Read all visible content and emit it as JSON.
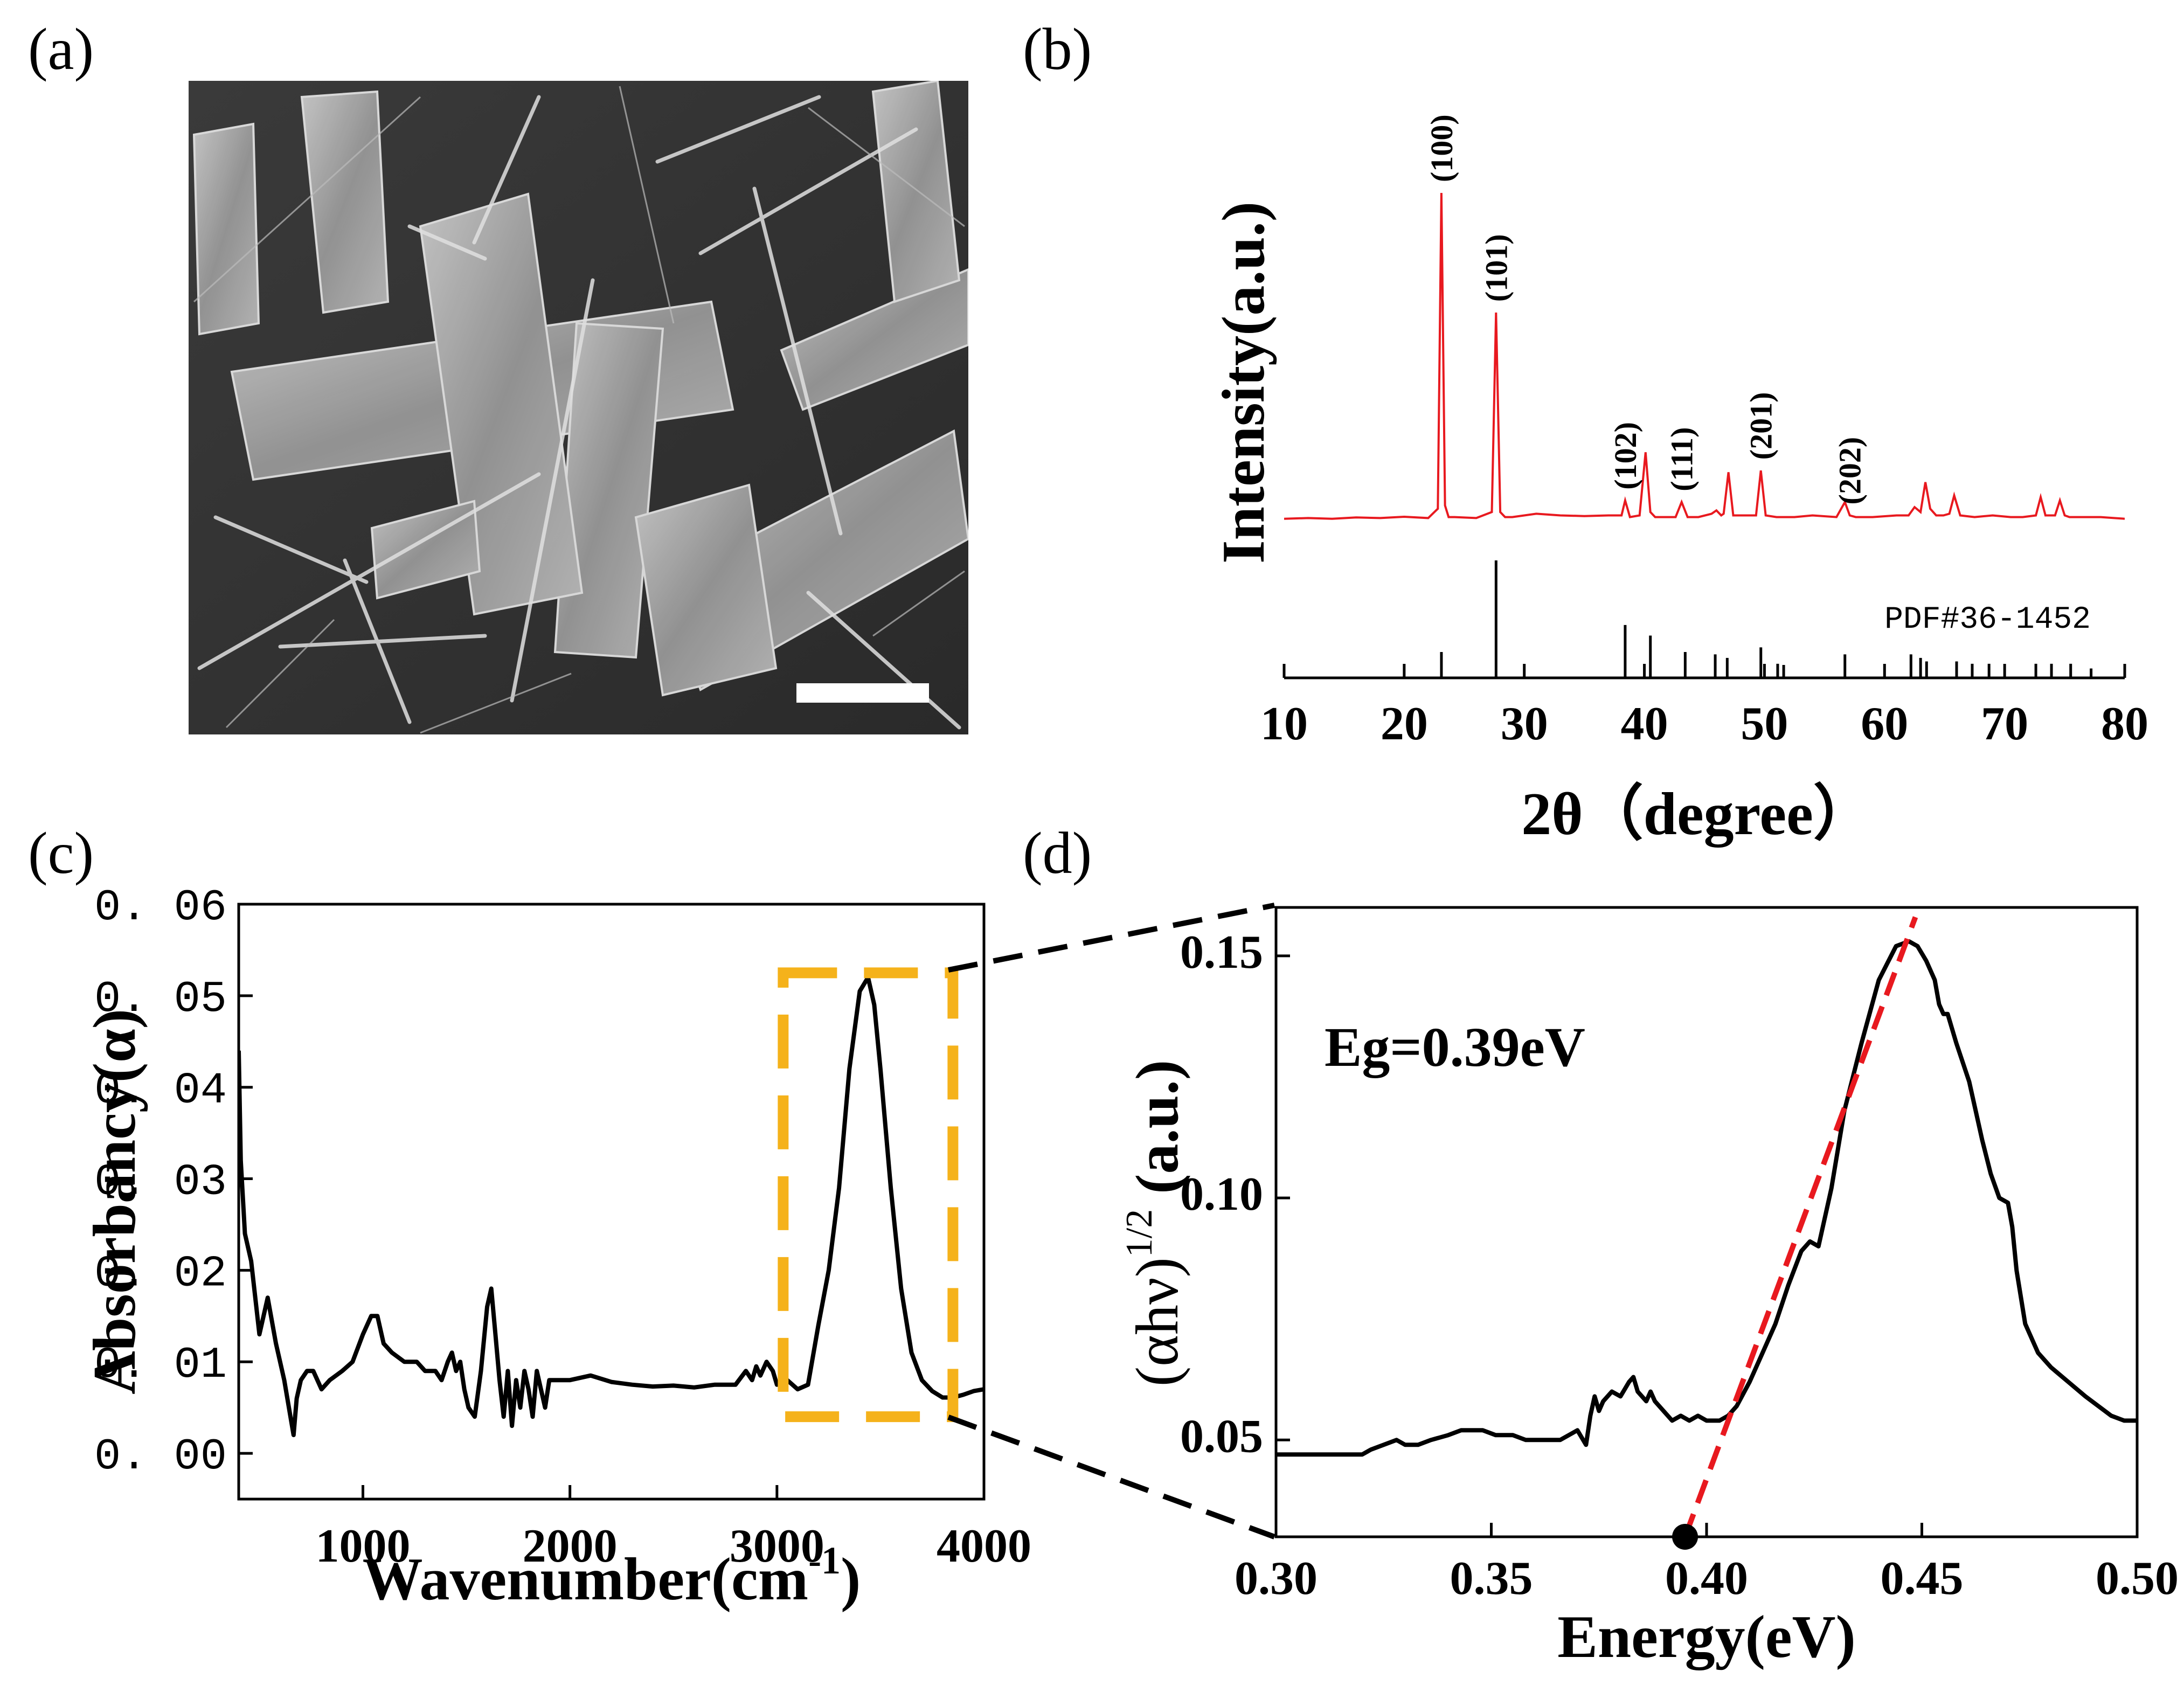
{
  "panels": [
    {
      "id": "a",
      "label": "(a)"
    },
    {
      "id": "b",
      "label": "(b)"
    },
    {
      "id": "c",
      "label": "(c)"
    },
    {
      "id": "d",
      "label": "(d)"
    }
  ],
  "colors": {
    "xrd_line": "#e8191f",
    "reference": "#000000",
    "ftir_line": "#000000",
    "zoom_box": "#f5b21b",
    "fit_line": "#e8191f"
  },
  "chart_data": [
    {
      "panel": "b",
      "type": "line",
      "title": "",
      "xlabel": "2θ（degree）",
      "ylabel": "Intensity(a.u.)",
      "xlim": [
        10,
        80
      ],
      "xticks": [
        "10",
        "20",
        "30",
        "40",
        "50",
        "60",
        "70",
        "80"
      ],
      "y_ticks_shown": false,
      "grid": false,
      "legend": "none",
      "series": [
        {
          "x": [
            10,
            12,
            14,
            16,
            18,
            20,
            22,
            22.8,
            23.1,
            23.4,
            23.7,
            24.2,
            26,
            27.3,
            27.65,
            28.0,
            28.4,
            29,
            31,
            33,
            35,
            37,
            38.1,
            38.4,
            38.8,
            39.6,
            40.1,
            40.5,
            40.9,
            41.6,
            42.6,
            43.1,
            43.6,
            44.5,
            45.6,
            46.0,
            46.4,
            46.6,
            47.0,
            47.4,
            48.2,
            49.3,
            49.7,
            50.1,
            51.0,
            52.5,
            54.0,
            56.0,
            56.7,
            57.1,
            57.6,
            59,
            61,
            62.0,
            62.5,
            63.0,
            63.4,
            63.8,
            64.3,
            64.9,
            65.4,
            65.8,
            66.3,
            67.5,
            69,
            70.5,
            71.5,
            72.6,
            73.0,
            73.4,
            74.2,
            74.6,
            75.0,
            75.4,
            76.2,
            78,
            80
          ],
          "y": [
            0.02,
            0.022,
            0.02,
            0.024,
            0.022,
            0.026,
            0.022,
            0.05,
            1.0,
            0.06,
            0.025,
            0.025,
            0.022,
            0.04,
            0.64,
            0.04,
            0.025,
            0.025,
            0.035,
            0.03,
            0.028,
            0.03,
            0.03,
            0.075,
            0.025,
            0.03,
            0.22,
            0.04,
            0.025,
            0.025,
            0.025,
            0.07,
            0.025,
            0.025,
            0.035,
            0.045,
            0.03,
            0.035,
            0.16,
            0.03,
            0.03,
            0.03,
            0.165,
            0.03,
            0.025,
            0.025,
            0.03,
            0.025,
            0.07,
            0.03,
            0.025,
            0.025,
            0.03,
            0.03,
            0.055,
            0.04,
            0.13,
            0.05,
            0.03,
            0.03,
            0.035,
            0.09,
            0.03,
            0.025,
            0.03,
            0.025,
            0.025,
            0.03,
            0.085,
            0.03,
            0.03,
            0.075,
            0.03,
            0.025,
            0.025,
            0.025,
            0.02
          ]
        }
      ],
      "peak_labels": [
        {
          "x": 23.1,
          "text": "(100)"
        },
        {
          "x": 27.65,
          "text": "(101)"
        },
        {
          "x": 38.4,
          "text": "(102)"
        },
        {
          "x": 43.1,
          "text": "(111)"
        },
        {
          "x": 49.7,
          "text": "(201)"
        },
        {
          "x": 57.1,
          "text": "(202)"
        }
      ],
      "reference": {
        "label": "PDF#36-1452",
        "x": [
          23.1,
          27.65,
          38.4,
          40.5,
          43.4,
          45.9,
          46.9,
          49.7,
          51.1,
          51.6,
          56.7,
          62.2,
          63.0,
          63.5,
          66.0,
          67.3,
          68.7,
          72.6,
          73.9,
          75.5,
          77.2
        ],
        "h": [
          0.22,
          1.0,
          0.45,
          0.36,
          0.22,
          0.2,
          0.17,
          0.26,
          0.12,
          0.11,
          0.2,
          0.2,
          0.17,
          0.14,
          0.14,
          0.12,
          0.12,
          0.12,
          0.12,
          0.12,
          0.08
        ]
      }
    },
    {
      "panel": "c",
      "type": "line",
      "title": "",
      "xlabel": "Wavenumber(cm",
      "xlabel_sup": "-1",
      "xlabel_close": ")",
      "ylabel": "Absorbancy(α)",
      "xlim": [
        400,
        4000
      ],
      "ylim": [
        -0.005,
        0.06
      ],
      "xticks": [
        "1000",
        "2000",
        "3000",
        "4000"
      ],
      "yticks": [
        "0. 00",
        "0. 01",
        "0. 02",
        "0. 03",
        "0. 04",
        "0. 05",
        "0. 06"
      ],
      "grid": false,
      "legend": "none",
      "series": [
        {
          "x": [
            400,
            410,
            430,
            460,
            500,
            540,
            580,
            620,
            650,
            665,
            680,
            700,
            730,
            760,
            800,
            840,
            900,
            950,
            1000,
            1040,
            1070,
            1100,
            1140,
            1200,
            1260,
            1300,
            1350,
            1380,
            1410,
            1430,
            1450,
            1470,
            1490,
            1510,
            1540,
            1570,
            1600,
            1620,
            1640,
            1660,
            1680,
            1700,
            1720,
            1740,
            1760,
            1780,
            1800,
            1820,
            1840,
            1860,
            1880,
            1900,
            1950,
            2000,
            2100,
            2200,
            2300,
            2400,
            2500,
            2600,
            2700,
            2800,
            2850,
            2880,
            2900,
            2920,
            2950,
            2980,
            3000,
            3050,
            3100,
            3150,
            3200,
            3250,
            3300,
            3350,
            3400,
            3440,
            3470,
            3500,
            3550,
            3600,
            3650,
            3700,
            3750,
            3800,
            3850,
            3900,
            3950,
            4000
          ],
          "y": [
            0.044,
            0.032,
            0.024,
            0.021,
            0.013,
            0.017,
            0.012,
            0.008,
            0.004,
            0.002,
            0.006,
            0.008,
            0.009,
            0.009,
            0.007,
            0.008,
            0.009,
            0.01,
            0.013,
            0.015,
            0.015,
            0.012,
            0.011,
            0.01,
            0.01,
            0.009,
            0.009,
            0.008,
            0.01,
            0.011,
            0.009,
            0.01,
            0.007,
            0.005,
            0.004,
            0.009,
            0.016,
            0.018,
            0.013,
            0.008,
            0.004,
            0.009,
            0.003,
            0.008,
            0.005,
            0.009,
            0.007,
            0.004,
            0.009,
            0.007,
            0.005,
            0.008,
            0.008,
            0.008,
            0.0085,
            0.0078,
            0.0075,
            0.0073,
            0.0074,
            0.0072,
            0.0075,
            0.0075,
            0.009,
            0.008,
            0.0095,
            0.0085,
            0.01,
            0.009,
            0.0075,
            0.008,
            0.007,
            0.0075,
            0.014,
            0.02,
            0.029,
            0.042,
            0.0505,
            0.052,
            0.049,
            0.042,
            0.029,
            0.018,
            0.011,
            0.008,
            0.0068,
            0.0061,
            0.0061,
            0.0064,
            0.0068,
            0.007
          ]
        }
      ],
      "zoom_box": {
        "x": [
          3030,
          3850
        ],
        "y": [
          0.004,
          0.0525
        ]
      }
    },
    {
      "panel": "d",
      "type": "line",
      "title": "",
      "xlabel": "Energy(eV)",
      "ylabel": "(αhν)",
      "ylabel_sup": "1/2",
      "ylabel_tail": " (a.u.)",
      "xlim": [
        0.3,
        0.5
      ],
      "ylim": [
        0.03,
        0.16
      ],
      "xticks": [
        "0.30",
        "0.35",
        "0.40",
        "0.45",
        "0.50"
      ],
      "yticks": [
        "0.05",
        "0.10",
        "0.15"
      ],
      "grid": false,
      "legend": "none",
      "series": [
        {
          "x": [
            0.3,
            0.31,
            0.32,
            0.322,
            0.325,
            0.328,
            0.33,
            0.333,
            0.336,
            0.34,
            0.343,
            0.346,
            0.348,
            0.351,
            0.355,
            0.358,
            0.362,
            0.366,
            0.368,
            0.37,
            0.372,
            0.373,
            0.374,
            0.375,
            0.376,
            0.378,
            0.38,
            0.382,
            0.383,
            0.384,
            0.386,
            0.387,
            0.388,
            0.39,
            0.392,
            0.394,
            0.396,
            0.398,
            0.4,
            0.403,
            0.405,
            0.407,
            0.41,
            0.413,
            0.416,
            0.419,
            0.422,
            0.424,
            0.426,
            0.429,
            0.432,
            0.436,
            0.44,
            0.444,
            0.447,
            0.449,
            0.451,
            0.453,
            0.454,
            0.455,
            0.456,
            0.458,
            0.461,
            0.464,
            0.466,
            0.468,
            0.47,
            0.471,
            0.472,
            0.474,
            0.477,
            0.48,
            0.484,
            0.488,
            0.491,
            0.494,
            0.497,
            0.5
          ],
          "y": [
            0.047,
            0.047,
            0.047,
            0.048,
            0.049,
            0.05,
            0.049,
            0.049,
            0.05,
            0.051,
            0.052,
            0.052,
            0.052,
            0.051,
            0.051,
            0.05,
            0.05,
            0.05,
            0.051,
            0.052,
            0.049,
            0.055,
            0.059,
            0.056,
            0.058,
            0.06,
            0.059,
            0.062,
            0.063,
            0.06,
            0.058,
            0.06,
            0.058,
            0.056,
            0.054,
            0.055,
            0.054,
            0.055,
            0.054,
            0.054,
            0.055,
            0.057,
            0.062,
            0.068,
            0.074,
            0.082,
            0.089,
            0.091,
            0.09,
            0.102,
            0.118,
            0.132,
            0.145,
            0.152,
            0.153,
            0.152,
            0.149,
            0.145,
            0.14,
            0.138,
            0.138,
            0.132,
            0.124,
            0.112,
            0.105,
            0.1,
            0.099,
            0.094,
            0.085,
            0.074,
            0.068,
            0.065,
            0.062,
            0.059,
            0.057,
            0.055,
            0.054,
            0.054
          ]
        }
      ],
      "fit_line": {
        "x": [
          0.395,
          0.4485
        ],
        "y": [
          0.03,
          0.158
        ]
      },
      "intercept_marker": {
        "x": 0.395,
        "y": 0.03
      },
      "annotation": "Eg=0.39eV"
    }
  ]
}
